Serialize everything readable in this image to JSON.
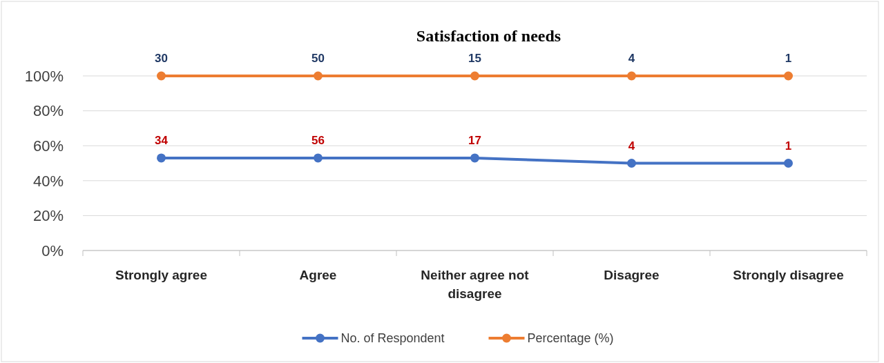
{
  "chart_data": {
    "type": "line",
    "title": "Satisfaction of needs",
    "categories": [
      "Strongly agree",
      "Agree",
      "Neither agree not disagree",
      "Disagree",
      "Strongly disagree"
    ],
    "series": [
      {
        "name": "No. of Respondent",
        "color": "#4472c4",
        "values": [
          53,
          53,
          53,
          50,
          50
        ]
      },
      {
        "name": "Percentage (%)",
        "color": "#ed7d31",
        "values": [
          100,
          100,
          100,
          100,
          100
        ]
      }
    ],
    "annotations": [
      {
        "text": "34",
        "x": "Strongly agree",
        "y": 53
      },
      {
        "text": "56",
        "x": "Agree",
        "y": 53
      },
      {
        "text": "17",
        "x": "Neither agree not disagree",
        "y": 53
      },
      {
        "text": "4",
        "x": "Disagree",
        "y": 50
      },
      {
        "text": "1",
        "x": "Strongly disagree",
        "y": 50
      },
      {
        "text": "30",
        "x": "Strongly agree",
        "y": 100
      },
      {
        "text": "50",
        "x": "Agree",
        "y": 100
      },
      {
        "text": "15",
        "x": "Neither agree not disagree",
        "y": 100
      },
      {
        "text": "4",
        "x": "Disagree",
        "y": 100
      },
      {
        "text": "1",
        "x": "Strongly disagree",
        "y": 100
      }
    ],
    "ylim": [
      0,
      100
    ],
    "yticks": [
      {
        "value": 0,
        "label": "0%"
      },
      {
        "value": 20,
        "label": "20%"
      },
      {
        "value": 40,
        "label": "40%"
      },
      {
        "value": 60,
        "label": "60%"
      },
      {
        "value": 80,
        "label": "80%"
      },
      {
        "value": 100,
        "label": "100%"
      }
    ],
    "grid": "y",
    "legend": "bottom",
    "marker": "circle",
    "line_style": "solid"
  }
}
